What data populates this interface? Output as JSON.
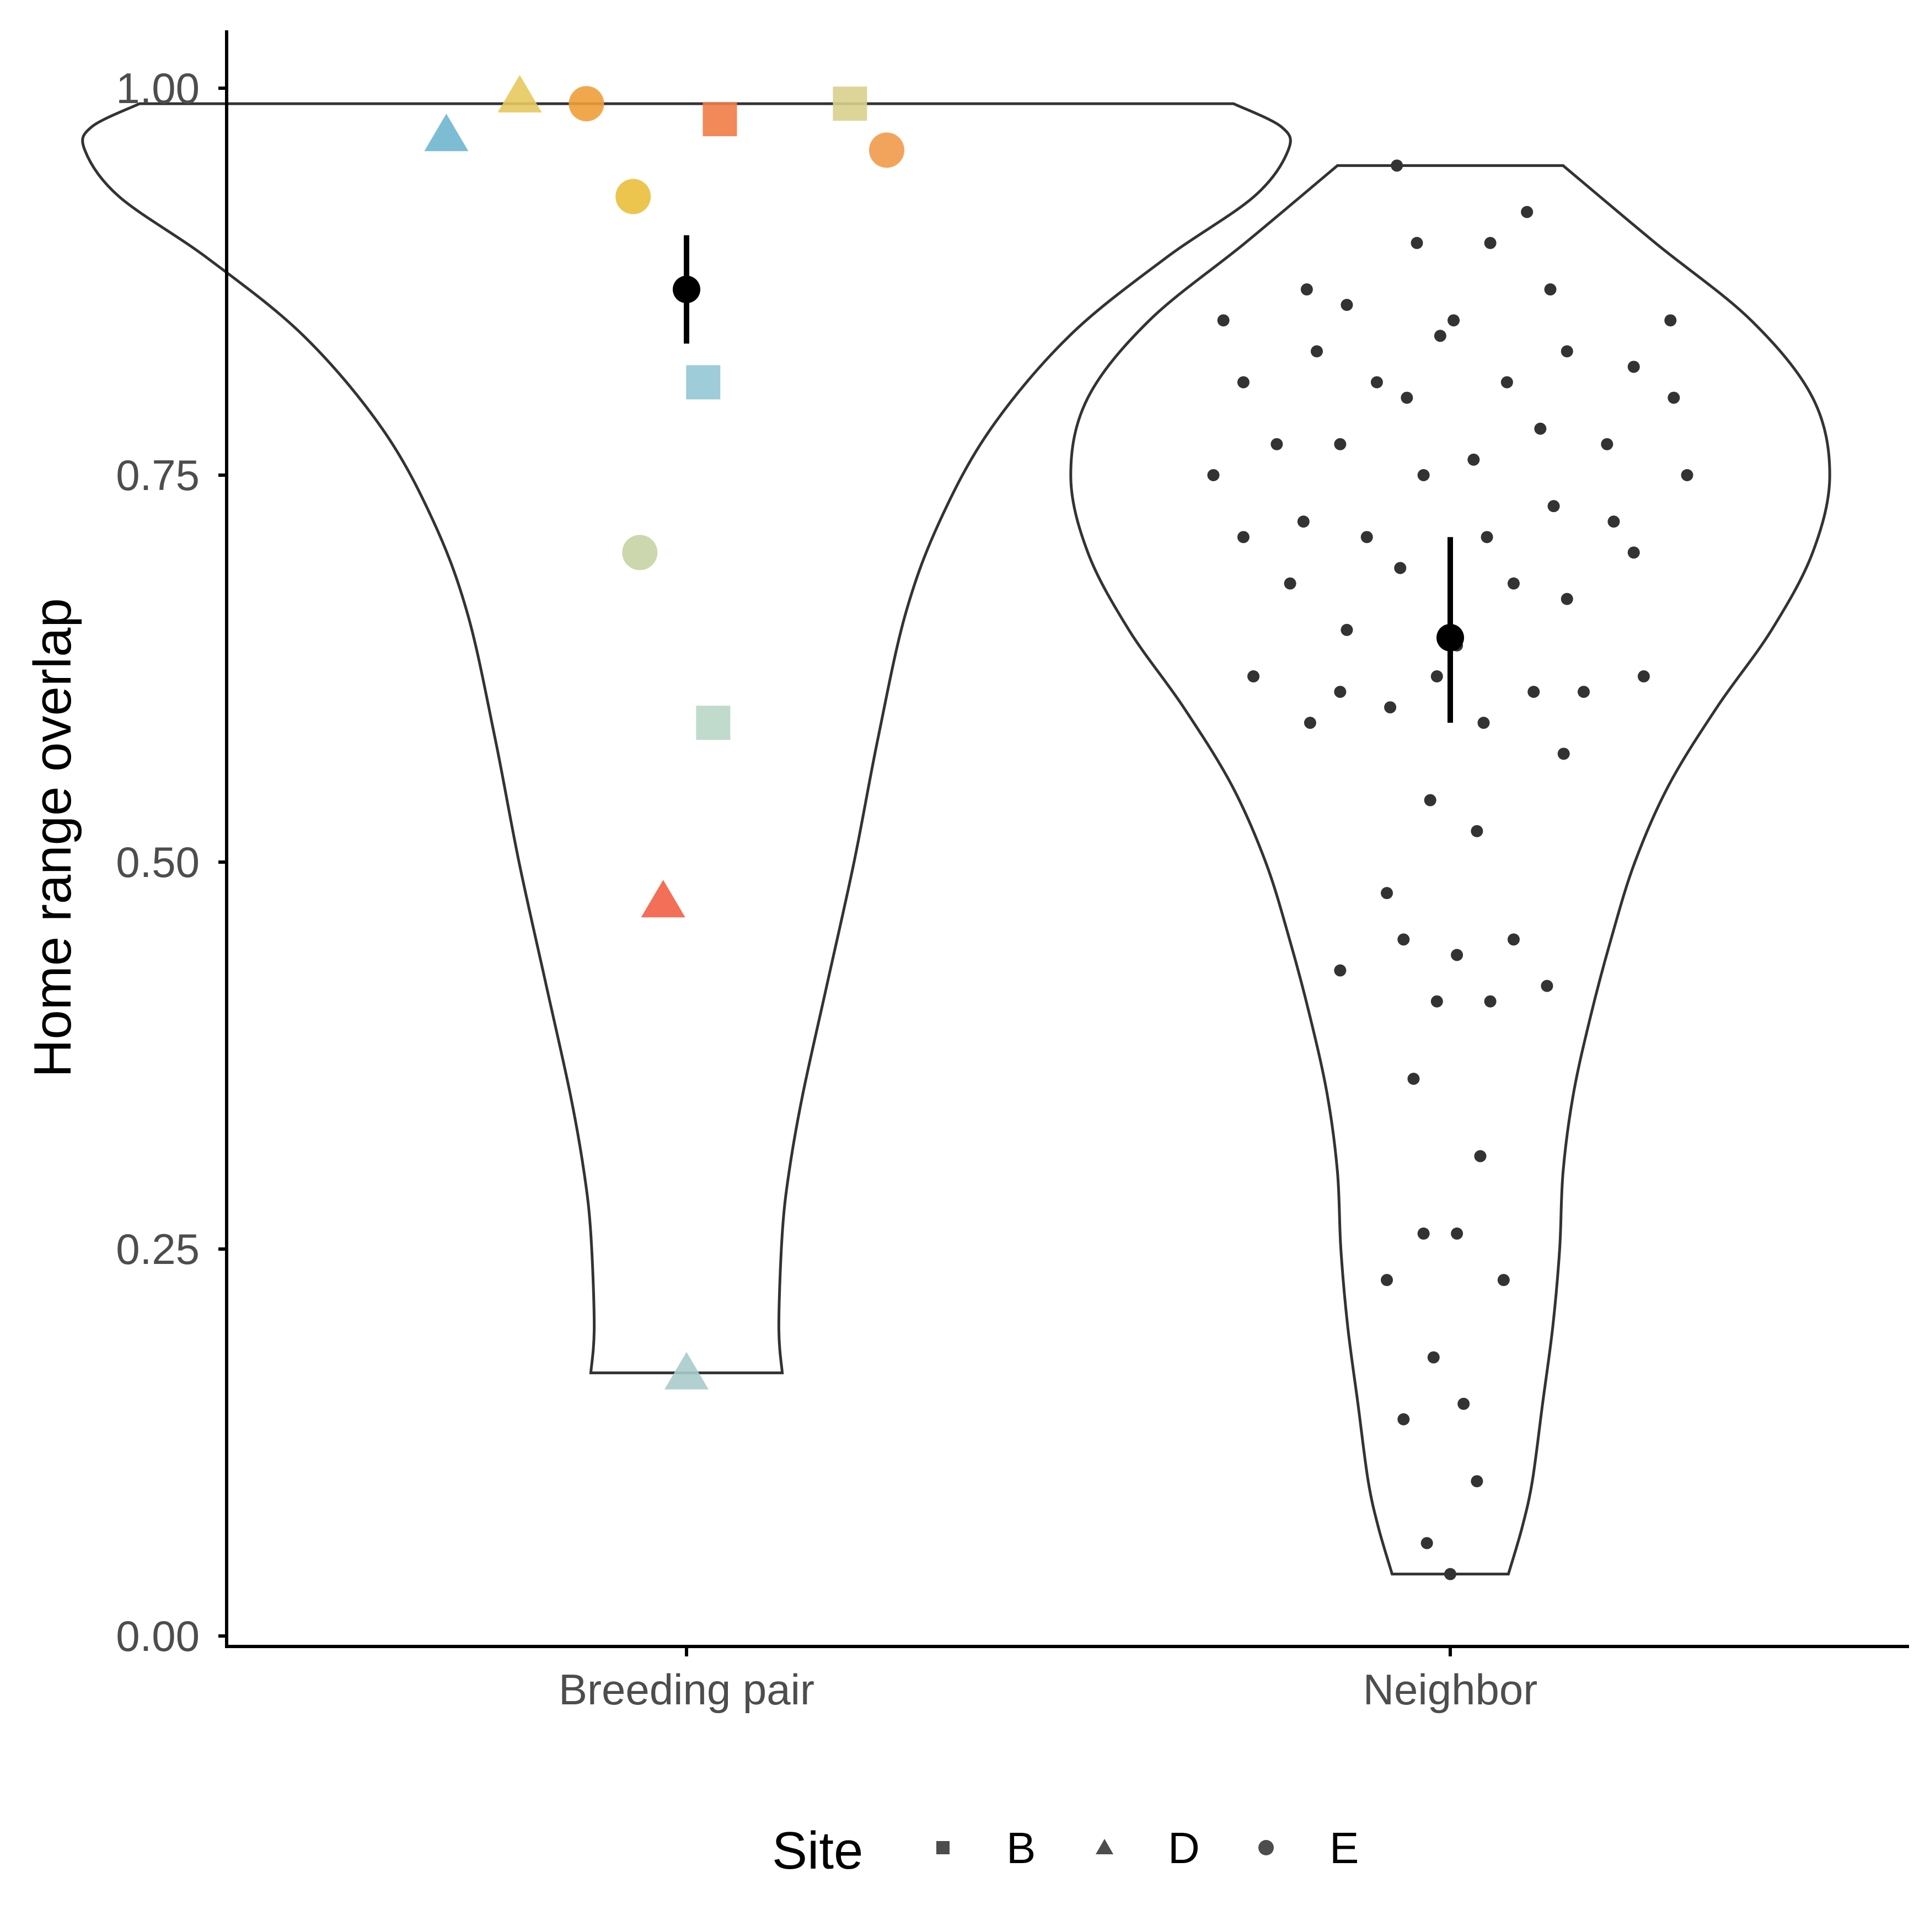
{
  "chart_data": {
    "type": "violin",
    "ylabel": "Home range overlap",
    "xlabel": "",
    "ylim": [
      0,
      1.04
    ],
    "y_ticks": [
      0.0,
      0.25,
      0.5,
      0.75,
      1.0
    ],
    "y_tick_labels": [
      "0.00",
      "0.25",
      "0.50",
      "0.75",
      "1.00"
    ],
    "grid": false,
    "categories": [
      "Breeding pair",
      "Neighbor"
    ],
    "violins": [
      {
        "category": "Breeding pair",
        "min": 0.17,
        "max": 0.99,
        "mean": 0.87,
        "ci": [
          0.835,
          0.905
        ],
        "profile": [
          [
            0.17,
            0.14
          ],
          [
            0.2,
            0.135
          ],
          [
            0.26,
            0.14
          ],
          [
            0.3,
            0.15
          ],
          [
            0.35,
            0.17
          ],
          [
            0.42,
            0.205
          ],
          [
            0.5,
            0.245
          ],
          [
            0.58,
            0.28
          ],
          [
            0.66,
            0.32
          ],
          [
            0.72,
            0.37
          ],
          [
            0.78,
            0.445
          ],
          [
            0.84,
            0.56
          ],
          [
            0.89,
            0.7
          ],
          [
            0.93,
            0.83
          ],
          [
            0.96,
            0.88
          ],
          [
            0.975,
            0.87
          ],
          [
            0.99,
            0.8
          ]
        ],
        "points": [
          {
            "x_jitter": -0.36,
            "y": 0.97,
            "site": "D",
            "color": "#6fb6cf"
          },
          {
            "x_jitter": -0.25,
            "y": 0.995,
            "site": "D",
            "color": "#e6c95e"
          },
          {
            "x_jitter": -0.15,
            "y": 0.99,
            "site": "E",
            "color": "#ef9f3a"
          },
          {
            "x_jitter": 0.05,
            "y": 0.98,
            "site": "B",
            "color": "#f07c46"
          },
          {
            "x_jitter": 0.245,
            "y": 0.99,
            "site": "B",
            "color": "#d8d08c"
          },
          {
            "x_jitter": 0.3,
            "y": 0.96,
            "site": "E",
            "color": "#f19a4a"
          },
          {
            "x_jitter": -0.08,
            "y": 0.93,
            "site": "E",
            "color": "#eabf3c"
          },
          {
            "x_jitter": 0.025,
            "y": 0.81,
            "site": "B",
            "color": "#93c7d4"
          },
          {
            "x_jitter": -0.07,
            "y": 0.7,
            "site": "E",
            "color": "#c7d3a4"
          },
          {
            "x_jitter": 0.04,
            "y": 0.59,
            "site": "B",
            "color": "#b9d6c7"
          },
          {
            "x_jitter": -0.035,
            "y": 0.475,
            "site": "D",
            "color": "#f25f45"
          },
          {
            "x_jitter": 0.0,
            "y": 0.17,
            "site": "D",
            "color": "#a9cccb"
          }
        ]
      },
      {
        "category": "Neighbor",
        "min": 0.04,
        "max": 0.95,
        "mean": 0.645,
        "ci": [
          0.59,
          0.71
        ],
        "profile": [
          [
            0.04,
            0.085
          ],
          [
            0.07,
            0.105
          ],
          [
            0.1,
            0.12
          ],
          [
            0.15,
            0.135
          ],
          [
            0.2,
            0.15
          ],
          [
            0.25,
            0.16
          ],
          [
            0.3,
            0.165
          ],
          [
            0.35,
            0.18
          ],
          [
            0.4,
            0.205
          ],
          [
            0.45,
            0.235
          ],
          [
            0.5,
            0.27
          ],
          [
            0.55,
            0.32
          ],
          [
            0.6,
            0.39
          ],
          [
            0.65,
            0.47
          ],
          [
            0.7,
            0.53
          ],
          [
            0.75,
            0.555
          ],
          [
            0.8,
            0.53
          ],
          [
            0.85,
            0.44
          ],
          [
            0.9,
            0.3
          ],
          [
            0.95,
            0.165
          ]
        ],
        "points": [
          {
            "x_jitter": -0.08,
            "y": 0.95
          },
          {
            "x_jitter": -0.05,
            "y": 0.9
          },
          {
            "x_jitter": 0.06,
            "y": 0.9
          },
          {
            "x_jitter": 0.115,
            "y": 0.92
          },
          {
            "x_jitter": -0.215,
            "y": 0.87
          },
          {
            "x_jitter": -0.155,
            "y": 0.86
          },
          {
            "x_jitter": 0.15,
            "y": 0.87
          },
          {
            "x_jitter": -0.015,
            "y": 0.84
          },
          {
            "x_jitter": 0.005,
            "y": 0.85
          },
          {
            "x_jitter": -0.34,
            "y": 0.85
          },
          {
            "x_jitter": 0.33,
            "y": 0.85
          },
          {
            "x_jitter": -0.2,
            "y": 0.83
          },
          {
            "x_jitter": 0.175,
            "y": 0.83
          },
          {
            "x_jitter": -0.31,
            "y": 0.81
          },
          {
            "x_jitter": -0.11,
            "y": 0.81
          },
          {
            "x_jitter": 0.085,
            "y": 0.81
          },
          {
            "x_jitter": 0.275,
            "y": 0.82
          },
          {
            "x_jitter": -0.065,
            "y": 0.8
          },
          {
            "x_jitter": 0.335,
            "y": 0.8
          },
          {
            "x_jitter": -0.26,
            "y": 0.77
          },
          {
            "x_jitter": -0.165,
            "y": 0.77
          },
          {
            "x_jitter": 0.135,
            "y": 0.78
          },
          {
            "x_jitter": 0.235,
            "y": 0.77
          },
          {
            "x_jitter": -0.355,
            "y": 0.75
          },
          {
            "x_jitter": -0.04,
            "y": 0.75
          },
          {
            "x_jitter": 0.035,
            "y": 0.76
          },
          {
            "x_jitter": 0.355,
            "y": 0.75
          },
          {
            "x_jitter": -0.31,
            "y": 0.71
          },
          {
            "x_jitter": -0.22,
            "y": 0.72
          },
          {
            "x_jitter": -0.125,
            "y": 0.71
          },
          {
            "x_jitter": 0.055,
            "y": 0.71
          },
          {
            "x_jitter": 0.155,
            "y": 0.73
          },
          {
            "x_jitter": 0.245,
            "y": 0.72
          },
          {
            "x_jitter": 0.275,
            "y": 0.7
          },
          {
            "x_jitter": -0.24,
            "y": 0.68
          },
          {
            "x_jitter": -0.075,
            "y": 0.69
          },
          {
            "x_jitter": 0.095,
            "y": 0.68
          },
          {
            "x_jitter": 0.175,
            "y": 0.67
          },
          {
            "x_jitter": -0.155,
            "y": 0.65
          },
          {
            "x_jitter": 0.01,
            "y": 0.64
          },
          {
            "x_jitter": -0.295,
            "y": 0.62
          },
          {
            "x_jitter": -0.165,
            "y": 0.61
          },
          {
            "x_jitter": -0.02,
            "y": 0.62
          },
          {
            "x_jitter": 0.125,
            "y": 0.61
          },
          {
            "x_jitter": 0.2,
            "y": 0.61
          },
          {
            "x_jitter": 0.29,
            "y": 0.62
          },
          {
            "x_jitter": -0.21,
            "y": 0.59
          },
          {
            "x_jitter": -0.09,
            "y": 0.6
          },
          {
            "x_jitter": 0.05,
            "y": 0.59
          },
          {
            "x_jitter": 0.17,
            "y": 0.57
          },
          {
            "x_jitter": -0.03,
            "y": 0.54
          },
          {
            "x_jitter": 0.04,
            "y": 0.52
          },
          {
            "x_jitter": -0.095,
            "y": 0.48
          },
          {
            "x_jitter": -0.165,
            "y": 0.43
          },
          {
            "x_jitter": -0.07,
            "y": 0.45
          },
          {
            "x_jitter": 0.01,
            "y": 0.44
          },
          {
            "x_jitter": 0.095,
            "y": 0.45
          },
          {
            "x_jitter": -0.02,
            "y": 0.41
          },
          {
            "x_jitter": 0.06,
            "y": 0.41
          },
          {
            "x_jitter": 0.145,
            "y": 0.42
          },
          {
            "x_jitter": -0.055,
            "y": 0.36
          },
          {
            "x_jitter": 0.045,
            "y": 0.31
          },
          {
            "x_jitter": -0.04,
            "y": 0.26
          },
          {
            "x_jitter": 0.01,
            "y": 0.26
          },
          {
            "x_jitter": -0.095,
            "y": 0.23
          },
          {
            "x_jitter": 0.08,
            "y": 0.23
          },
          {
            "x_jitter": -0.025,
            "y": 0.18
          },
          {
            "x_jitter": -0.07,
            "y": 0.14
          },
          {
            "x_jitter": 0.02,
            "y": 0.15
          },
          {
            "x_jitter": 0.04,
            "y": 0.1
          },
          {
            "x_jitter": -0.035,
            "y": 0.06
          },
          {
            "x_jitter": 0.0,
            "y": 0.04
          }
        ],
        "point_color": "#333333"
      }
    ],
    "legend": {
      "title": "Site",
      "position": "bottom",
      "entries": [
        {
          "label": "B",
          "shape": "square"
        },
        {
          "label": "D",
          "shape": "triangle"
        },
        {
          "label": "E",
          "shape": "circle"
        }
      ],
      "key_color": "#4d4d4d"
    }
  }
}
